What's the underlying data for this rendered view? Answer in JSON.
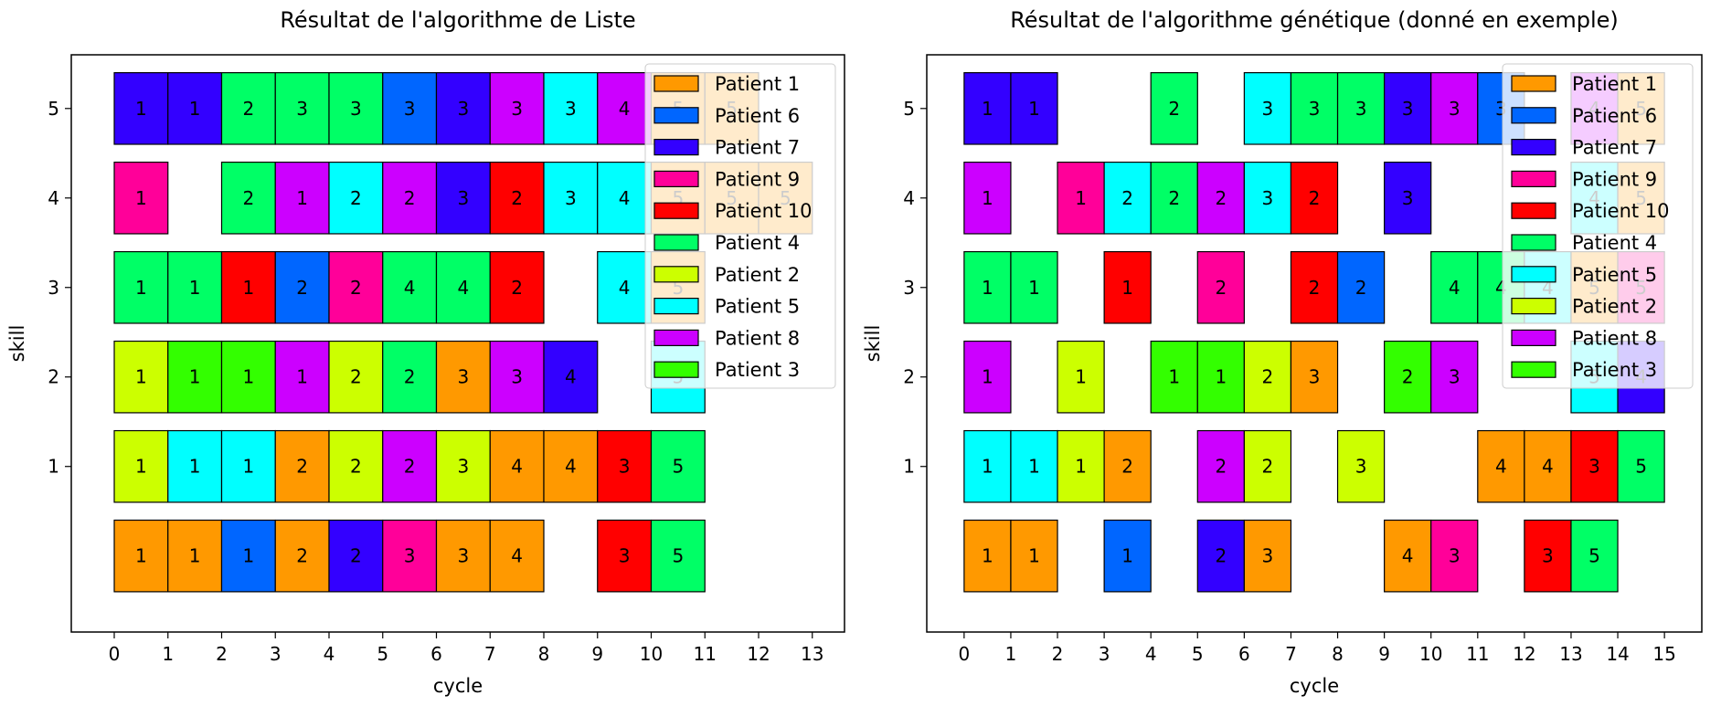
{
  "chart_data": [
    {
      "type": "gantt",
      "title": "Résultat de l'algorithme de Liste",
      "xlabel": "cycle",
      "ylabel": "skill",
      "xlim": [
        -0.8,
        13.6
      ],
      "ylim": [
        -0.85,
        5.6
      ],
      "xticks": [
        0,
        1,
        2,
        3,
        4,
        5,
        6,
        7,
        8,
        9,
        10,
        11,
        12,
        13
      ],
      "yticks": [
        1,
        2,
        3,
        4,
        5
      ],
      "legend_position": "top-right",
      "legend": [
        "Patient 1",
        "Patient 6",
        "Patient 7",
        "Patient 9",
        "Patient 10",
        "Patient 4",
        "Patient 2",
        "Patient 5",
        "Patient 8",
        "Patient 3"
      ],
      "rows": [
        {
          "skill": 5,
          "cells": [
            [
              0,
              "Patient 7",
              1
            ],
            [
              1,
              "Patient 7",
              1
            ],
            [
              2,
              "Patient 4",
              2
            ],
            [
              3,
              "Patient 4",
              3
            ],
            [
              4,
              "Patient 4",
              3
            ],
            [
              5,
              "Patient 6",
              3
            ],
            [
              6,
              "Patient 7",
              3
            ],
            [
              7,
              "Patient 8",
              3
            ],
            [
              8,
              "Patient 5",
              3
            ],
            [
              9,
              "Patient 8",
              4
            ],
            [
              10,
              "Patient 1",
              5
            ],
            [
              11,
              "Patient 1",
              5
            ]
          ]
        },
        {
          "skill": 4,
          "cells": [
            [
              0,
              "Patient 9",
              1
            ],
            [
              2,
              "Patient 4",
              2
            ],
            [
              3,
              "Patient 8",
              1
            ],
            [
              4,
              "Patient 5",
              2
            ],
            [
              5,
              "Patient 8",
              2
            ],
            [
              6,
              "Patient 7",
              3
            ],
            [
              7,
              "Patient 10",
              2
            ],
            [
              8,
              "Patient 5",
              3
            ],
            [
              9,
              "Patient 5",
              4
            ],
            [
              10,
              "Patient 1",
              5
            ],
            [
              11,
              "Patient 1",
              5
            ],
            [
              12,
              "Patient 1",
              5
            ]
          ]
        },
        {
          "skill": 3,
          "cells": [
            [
              0,
              "Patient 4",
              1
            ],
            [
              1,
              "Patient 4",
              1
            ],
            [
              2,
              "Patient 10",
              1
            ],
            [
              3,
              "Patient 6",
              2
            ],
            [
              4,
              "Patient 9",
              2
            ],
            [
              5,
              "Patient 4",
              4
            ],
            [
              6,
              "Patient 4",
              4
            ],
            [
              7,
              "Patient 10",
              2
            ],
            [
              9,
              "Patient 5",
              4
            ],
            [
              10,
              "Patient 1",
              5
            ]
          ]
        },
        {
          "skill": 2,
          "cells": [
            [
              0,
              "Patient 2",
              1
            ],
            [
              1,
              "Patient 3",
              1
            ],
            [
              2,
              "Patient 3",
              1
            ],
            [
              3,
              "Patient 8",
              1
            ],
            [
              4,
              "Patient 2",
              2
            ],
            [
              5,
              "Patient 4",
              2
            ],
            [
              6,
              "Patient 1",
              3
            ],
            [
              7,
              "Patient 8",
              3
            ],
            [
              8,
              "Patient 7",
              4
            ],
            [
              10,
              "Patient 5",
              5
            ]
          ]
        },
        {
          "skill": 1,
          "cells": [
            [
              0,
              "Patient 2",
              1
            ],
            [
              1,
              "Patient 5",
              1
            ],
            [
              2,
              "Patient 5",
              1
            ],
            [
              3,
              "Patient 1",
              2
            ],
            [
              4,
              "Patient 2",
              2
            ],
            [
              5,
              "Patient 8",
              2
            ],
            [
              6,
              "Patient 2",
              3
            ],
            [
              7,
              "Patient 1",
              4
            ],
            [
              8,
              "Patient 1",
              4
            ],
            [
              9,
              "Patient 10",
              3
            ],
            [
              10,
              "Patient 4",
              5
            ]
          ]
        },
        {
          "skill": 0,
          "cells": [
            [
              0,
              "Patient 1",
              1
            ],
            [
              1,
              "Patient 1",
              1
            ],
            [
              2,
              "Patient 6",
              1
            ],
            [
              3,
              "Patient 1",
              2
            ],
            [
              4,
              "Patient 7",
              2
            ],
            [
              5,
              "Patient 9",
              3
            ],
            [
              6,
              "Patient 1",
              3
            ],
            [
              7,
              "Patient 1",
              4
            ],
            [
              9,
              "Patient 10",
              3
            ],
            [
              10,
              "Patient 4",
              5
            ]
          ]
        }
      ]
    },
    {
      "type": "gantt",
      "title": "Résultat de l'algorithme génétique (donné en exemple)",
      "xlabel": "cycle",
      "ylabel": "skill",
      "xlim": [
        -0.8,
        15.8
      ],
      "ylim": [
        -0.85,
        5.6
      ],
      "xticks": [
        0,
        1,
        2,
        3,
        4,
        5,
        6,
        7,
        8,
        9,
        10,
        11,
        12,
        13,
        14,
        15
      ],
      "yticks": [
        1,
        2,
        3,
        4,
        5
      ],
      "legend_position": "top-right",
      "legend": [
        "Patient 1",
        "Patient 6",
        "Patient 7",
        "Patient 9",
        "Patient 10",
        "Patient 4",
        "Patient 5",
        "Patient 2",
        "Patient 8",
        "Patient 3"
      ],
      "rows": [
        {
          "skill": 5,
          "cells": [
            [
              0,
              "Patient 7",
              1
            ],
            [
              1,
              "Patient 7",
              1
            ],
            [
              4,
              "Patient 4",
              2
            ],
            [
              6,
              "Patient 5",
              3
            ],
            [
              7,
              "Patient 4",
              3
            ],
            [
              8,
              "Patient 4",
              3
            ],
            [
              9,
              "Patient 7",
              3
            ],
            [
              10,
              "Patient 8",
              3
            ],
            [
              11,
              "Patient 6",
              3
            ],
            [
              13,
              "Patient 8",
              4
            ],
            [
              14,
              "Patient 1",
              5
            ]
          ]
        },
        {
          "skill": 4,
          "cells": [
            [
              0,
              "Patient 8",
              1
            ],
            [
              2,
              "Patient 9",
              1
            ],
            [
              3,
              "Patient 5",
              2
            ],
            [
              4,
              "Patient 4",
              2
            ],
            [
              5,
              "Patient 8",
              2
            ],
            [
              6,
              "Patient 5",
              3
            ],
            [
              7,
              "Patient 10",
              2
            ],
            [
              9,
              "Patient 7",
              3
            ],
            [
              13,
              "Patient 5",
              4
            ],
            [
              14,
              "Patient 1",
              5
            ]
          ]
        },
        {
          "skill": 3,
          "cells": [
            [
              0,
              "Patient 4",
              1
            ],
            [
              1,
              "Patient 4",
              1
            ],
            [
              3,
              "Patient 10",
              1
            ],
            [
              5,
              "Patient 9",
              2
            ],
            [
              7,
              "Patient 10",
              2
            ],
            [
              8,
              "Patient 6",
              2
            ],
            [
              10,
              "Patient 4",
              4
            ],
            [
              11,
              "Patient 4",
              4
            ],
            [
              12,
              "Patient 5",
              4
            ],
            [
              13,
              "Patient 1",
              5
            ],
            [
              14,
              "Patient 9",
              5
            ]
          ]
        },
        {
          "skill": 2,
          "cells": [
            [
              0,
              "Patient 8",
              1
            ],
            [
              2,
              "Patient 2",
              1
            ],
            [
              4,
              "Patient 3",
              1
            ],
            [
              5,
              "Patient 3",
              1
            ],
            [
              6,
              "Patient 2",
              2
            ],
            [
              7,
              "Patient 1",
              3
            ],
            [
              9,
              "Patient 3",
              2
            ],
            [
              10,
              "Patient 8",
              3
            ],
            [
              13,
              "Patient 5",
              5
            ],
            [
              14,
              "Patient 7",
              4
            ]
          ]
        },
        {
          "skill": 1,
          "cells": [
            [
              0,
              "Patient 5",
              1
            ],
            [
              1,
              "Patient 5",
              1
            ],
            [
              2,
              "Patient 2",
              1
            ],
            [
              3,
              "Patient 1",
              2
            ],
            [
              5,
              "Patient 8",
              2
            ],
            [
              6,
              "Patient 2",
              2
            ],
            [
              8,
              "Patient 2",
              3
            ],
            [
              11,
              "Patient 1",
              4
            ],
            [
              12,
              "Patient 1",
              4
            ],
            [
              13,
              "Patient 10",
              3
            ],
            [
              14,
              "Patient 4",
              5
            ]
          ]
        },
        {
          "skill": 0,
          "cells": [
            [
              0,
              "Patient 1",
              1
            ],
            [
              1,
              "Patient 1",
              1
            ],
            [
              3,
              "Patient 6",
              1
            ],
            [
              5,
              "Patient 7",
              2
            ],
            [
              6,
              "Patient 1",
              3
            ],
            [
              9,
              "Patient 1",
              4
            ],
            [
              10,
              "Patient 9",
              3
            ],
            [
              12,
              "Patient 10",
              3
            ],
            [
              13,
              "Patient 4",
              5
            ]
          ]
        }
      ]
    }
  ],
  "patient_colors": {
    "Patient 1": "#ff9900",
    "Patient 2": "#ccff00",
    "Patient 3": "#33ff00",
    "Patient 4": "#00ff66",
    "Patient 5": "#00ffff",
    "Patient 6": "#0066ff",
    "Patient 7": "#3300ff",
    "Patient 8": "#cc00ff",
    "Patient 9": "#ff0099",
    "Patient 10": "#ff0000"
  }
}
